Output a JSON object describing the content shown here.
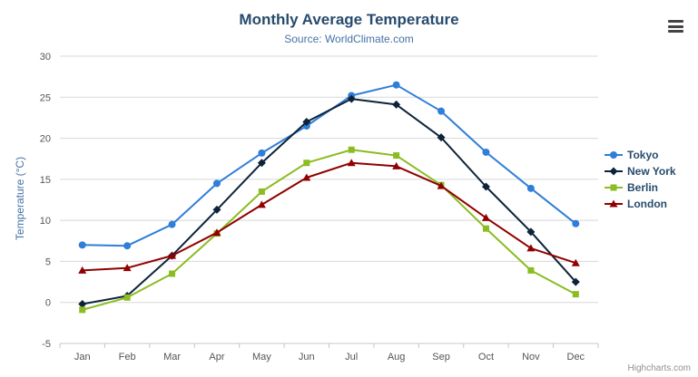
{
  "header": {
    "title": "Monthly Average Temperature",
    "subtitle": "Source: WorldClimate.com"
  },
  "credits": {
    "label": "Highcharts.com"
  },
  "chart_data": {
    "type": "line",
    "title": "Monthly Average Temperature",
    "subtitle": "Source: WorldClimate.com",
    "xlabel": "",
    "ylabel": "Temperature (°C)",
    "ylim": [
      -5,
      30
    ],
    "y_tick_interval": 5,
    "grid": true,
    "legend_position": "right",
    "categories": [
      "Jan",
      "Feb",
      "Mar",
      "Apr",
      "May",
      "Jun",
      "Jul",
      "Aug",
      "Sep",
      "Oct",
      "Nov",
      "Dec"
    ],
    "series": [
      {
        "name": "Tokyo",
        "color": "#2f7ed8",
        "marker": "circle",
        "values": [
          7.0,
          6.9,
          9.5,
          14.5,
          18.2,
          21.5,
          25.2,
          26.5,
          23.3,
          18.3,
          13.9,
          9.6
        ]
      },
      {
        "name": "New York",
        "color": "#0d233a",
        "marker": "diamond",
        "values": [
          -0.2,
          0.8,
          5.7,
          11.3,
          17.0,
          22.0,
          24.8,
          24.1,
          20.1,
          14.1,
          8.6,
          2.5
        ]
      },
      {
        "name": "Berlin",
        "color": "#8bbc21",
        "marker": "square",
        "values": [
          -0.9,
          0.6,
          3.5,
          8.4,
          13.5,
          17.0,
          18.6,
          17.9,
          14.3,
          9.0,
          3.9,
          1.0
        ]
      },
      {
        "name": "London",
        "color": "#910000",
        "marker": "triangle",
        "values": [
          3.9,
          4.2,
          5.7,
          8.5,
          11.9,
          15.2,
          17.0,
          16.6,
          14.2,
          10.3,
          6.6,
          4.8
        ]
      }
    ],
    "style": {
      "gridline_color": "#d8d8d8",
      "axis_line_color": "#c0c8d0",
      "label_color": "#555555"
    }
  }
}
